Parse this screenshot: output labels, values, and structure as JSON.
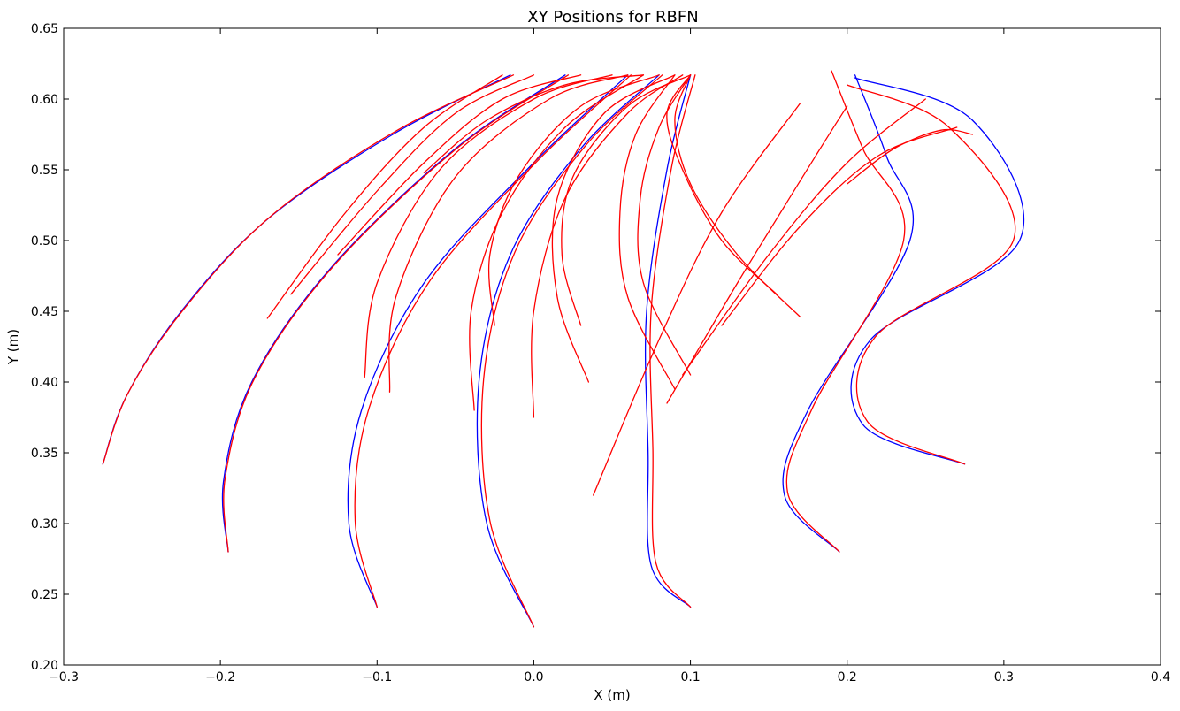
{
  "chart_data": {
    "type": "line",
    "title": "XY Positions for RBFN",
    "xlabel": "X (m)",
    "ylabel": "Y (m)",
    "xlim": [
      -0.3,
      0.4
    ],
    "ylim": [
      0.2,
      0.65
    ],
    "xticks": [
      -0.3,
      -0.2,
      -0.1,
      0.0,
      0.1,
      0.2,
      0.3,
      0.4
    ],
    "yticks": [
      0.2,
      0.25,
      0.3,
      0.35,
      0.4,
      0.45,
      0.5,
      0.55,
      0.6,
      0.65
    ],
    "xtick_labels": [
      "−0.3",
      "−0.2",
      "−0.1",
      "0.0",
      "0.1",
      "0.2",
      "0.3",
      "0.4"
    ],
    "ytick_labels": [
      "0.20",
      "0.25",
      "0.30",
      "0.35",
      "0.40",
      "0.45",
      "0.50",
      "0.55",
      "0.60",
      "0.65"
    ],
    "grid": false,
    "colors": {
      "desired": "#0000ff",
      "actual": "#ff0000",
      "axes": "#000000"
    },
    "series": [
      {
        "color": "#0000ff",
        "x": [
          -0.275,
          -0.26,
          -0.225,
          -0.17,
          -0.09,
          -0.015
        ],
        "y": [
          0.342,
          0.39,
          0.45,
          0.515,
          0.575,
          0.617
        ]
      },
      {
        "color": "#ff0000",
        "x": [
          -0.275,
          -0.259,
          -0.223,
          -0.167,
          -0.087,
          -0.013
        ],
        "y": [
          0.342,
          0.392,
          0.452,
          0.518,
          0.578,
          0.617
        ]
      },
      {
        "color": "#0000ff",
        "x": [
          -0.195,
          -0.198,
          -0.18,
          -0.13,
          -0.05,
          0.02
        ],
        "y": [
          0.28,
          0.33,
          0.4,
          0.48,
          0.565,
          0.617
        ]
      },
      {
        "color": "#ff0000",
        "x": [
          -0.195,
          -0.197,
          -0.178,
          -0.127,
          -0.047,
          0.022
        ],
        "y": [
          0.28,
          0.332,
          0.403,
          0.483,
          0.567,
          0.617
        ]
      },
      {
        "color": "#0000ff",
        "x": [
          -0.1,
          -0.118,
          -0.11,
          -0.07,
          0.0,
          0.06
        ],
        "y": [
          0.241,
          0.3,
          0.38,
          0.47,
          0.555,
          0.617
        ]
      },
      {
        "color": "#ff0000",
        "x": [
          -0.1,
          -0.114,
          -0.105,
          -0.066,
          0.003,
          0.062
        ],
        "y": [
          0.241,
          0.302,
          0.382,
          0.472,
          0.557,
          0.617
        ]
      },
      {
        "color": "#0000ff",
        "x": [
          0.0,
          -0.03,
          -0.035,
          -0.015,
          0.03,
          0.08
        ],
        "y": [
          0.227,
          0.3,
          0.4,
          0.49,
          0.565,
          0.617
        ]
      },
      {
        "color": "#ff0000",
        "x": [
          0.0,
          -0.028,
          -0.032,
          -0.012,
          0.033,
          0.082
        ],
        "y": [
          0.227,
          0.302,
          0.402,
          0.492,
          0.567,
          0.617
        ]
      },
      {
        "color": "#0000ff",
        "x": [
          0.1,
          0.075,
          0.073,
          0.072,
          0.085,
          0.1
        ],
        "y": [
          0.241,
          0.27,
          0.35,
          0.45,
          0.55,
          0.617
        ]
      },
      {
        "color": "#ff0000",
        "x": [
          0.1,
          0.078,
          0.076,
          0.075,
          0.088,
          0.103
        ],
        "y": [
          0.241,
          0.272,
          0.352,
          0.452,
          0.552,
          0.617
        ]
      },
      {
        "color": "#0000ff",
        "x": [
          0.195,
          0.16,
          0.175,
          0.24,
          0.225,
          0.205
        ],
        "y": [
          0.28,
          0.32,
          0.38,
          0.5,
          0.56,
          0.617
        ]
      },
      {
        "color": "#ff0000",
        "x": [
          0.195,
          0.162,
          0.178,
          0.236,
          0.21,
          0.19
        ],
        "y": [
          0.28,
          0.322,
          0.382,
          0.5,
          0.565,
          0.62
        ]
      },
      {
        "color": "#0000ff",
        "x": [
          0.275,
          0.21,
          0.215,
          0.31,
          0.28,
          0.205
        ],
        "y": [
          0.342,
          0.37,
          0.43,
          0.5,
          0.585,
          0.615
        ]
      },
      {
        "color": "#ff0000",
        "x": [
          0.275,
          0.213,
          0.218,
          0.306,
          0.265,
          0.2
        ],
        "y": [
          0.342,
          0.372,
          0.432,
          0.5,
          0.58,
          0.61
        ]
      },
      {
        "color": "#ff0000",
        "x": [
          -0.17,
          -0.12,
          -0.07,
          -0.02
        ],
        "y": [
          0.445,
          0.52,
          0.58,
          0.617
        ]
      },
      {
        "color": "#ff0000",
        "x": [
          -0.155,
          -0.1,
          -0.05,
          0.0
        ],
        "y": [
          0.462,
          0.535,
          0.59,
          0.617
        ]
      },
      {
        "color": "#ff0000",
        "x": [
          -0.125,
          -0.07,
          -0.02,
          0.03
        ],
        "y": [
          0.49,
          0.555,
          0.6,
          0.617
        ]
      },
      {
        "color": "#ff0000",
        "x": [
          -0.108,
          -0.1,
          -0.06,
          0.0,
          0.05
        ],
        "y": [
          0.403,
          0.47,
          0.55,
          0.6,
          0.617
        ]
      },
      {
        "color": "#ff0000",
        "x": [
          -0.092,
          -0.088,
          -0.05,
          0.01,
          0.06
        ],
        "y": [
          0.393,
          0.46,
          0.545,
          0.6,
          0.617
        ]
      },
      {
        "color": "#ff0000",
        "x": [
          -0.07,
          -0.03,
          0.02,
          0.07
        ],
        "y": [
          0.548,
          0.585,
          0.61,
          0.617
        ]
      },
      {
        "color": "#ff0000",
        "x": [
          -0.038,
          -0.04,
          -0.02,
          0.02,
          0.07
        ],
        "y": [
          0.38,
          0.45,
          0.52,
          0.58,
          0.617
        ]
      },
      {
        "color": "#ff0000",
        "x": [
          -0.025,
          -0.028,
          -0.01,
          0.03,
          0.08
        ],
        "y": [
          0.44,
          0.49,
          0.545,
          0.595,
          0.617
        ]
      },
      {
        "color": "#ff0000",
        "x": [
          0.0,
          0.0,
          0.02,
          0.06,
          0.095
        ],
        "y": [
          0.375,
          0.45,
          0.53,
          0.59,
          0.617
        ]
      },
      {
        "color": "#ff0000",
        "x": [
          0.03,
          0.018,
          0.025,
          0.06,
          0.1
        ],
        "y": [
          0.44,
          0.49,
          0.545,
          0.595,
          0.617
        ]
      },
      {
        "color": "#ff0000",
        "x": [
          0.035,
          0.015,
          0.015,
          0.045,
          0.09
        ],
        "y": [
          0.4,
          0.46,
          0.53,
          0.59,
          0.617
        ]
      },
      {
        "color": "#ff0000",
        "x": [
          0.038,
          0.08,
          0.12,
          0.17
        ],
        "y": [
          0.32,
          0.43,
          0.52,
          0.597
        ]
      },
      {
        "color": "#ff0000",
        "x": [
          0.09,
          0.06,
          0.055,
          0.065,
          0.09
        ],
        "y": [
          0.395,
          0.46,
          0.52,
          0.575,
          0.617
        ]
      },
      {
        "color": "#ff0000",
        "x": [
          0.1,
          0.07,
          0.068,
          0.08,
          0.1
        ],
        "y": [
          0.405,
          0.47,
          0.53,
          0.58,
          0.617
        ]
      },
      {
        "color": "#ff0000",
        "x": [
          0.085,
          0.13,
          0.18,
          0.2
        ],
        "y": [
          0.385,
          0.47,
          0.56,
          0.595
        ]
      },
      {
        "color": "#ff0000",
        "x": [
          0.095,
          0.15,
          0.2,
          0.25
        ],
        "y": [
          0.405,
          0.49,
          0.555,
          0.6
        ]
      },
      {
        "color": "#ff0000",
        "x": [
          0.12,
          0.17,
          0.22,
          0.27
        ],
        "y": [
          0.44,
          0.51,
          0.56,
          0.58
        ]
      },
      {
        "color": "#ff0000",
        "x": [
          0.155,
          0.12,
          0.095,
          0.085,
          0.1
        ],
        "y": [
          0.462,
          0.5,
          0.55,
          0.59,
          0.617
        ]
      },
      {
        "color": "#ff0000",
        "x": [
          0.17,
          0.13,
          0.1,
          0.09,
          0.1
        ],
        "y": [
          0.446,
          0.49,
          0.54,
          0.585,
          0.617
        ]
      },
      {
        "color": "#ff0000",
        "x": [
          0.2,
          0.23,
          0.26,
          0.28
        ],
        "y": [
          0.54,
          0.565,
          0.578,
          0.575
        ]
      }
    ]
  }
}
